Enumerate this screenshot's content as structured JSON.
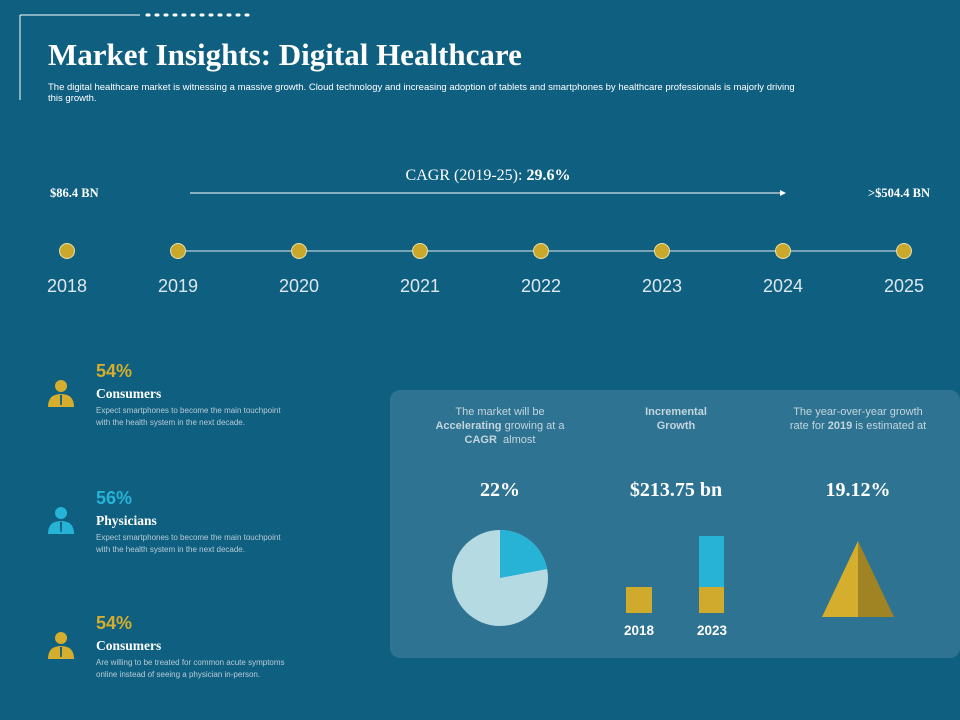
{
  "header": {
    "title": "Market Insights: Digital Healthcare",
    "subtitle": [
      "The digital healthcare market is witnessing a massive growth. Cloud technology and increasing adoption of tablets and smartphones by healthcare professionals is majorly driving",
      "this growth."
    ]
  },
  "timeline": {
    "cagr_label": "CAGR (2019-25):",
    "cagr_value": "29.6%",
    "start_value": "$86.4 BN",
    "end_value": ">$504.4 BN",
    "years": [
      "2018",
      "2019",
      "2020",
      "2021",
      "2022",
      "2023",
      "2024",
      "2025"
    ]
  },
  "segments": [
    {
      "percent": "54%",
      "title": "Consumers",
      "text": [
        "Expect smartphones to become the main touchpoint",
        "with the health system in the next decade."
      ]
    },
    {
      "percent": "56%",
      "title": "Physicians",
      "text": [
        "Expect smartphones to become the main touchpoint",
        "with the health system in the next decade."
      ]
    },
    {
      "percent": "54%",
      "title": "Consumers",
      "text": [
        "Are willing to be treated for common acute symptoms",
        "online instead of seeing a physician in-person."
      ]
    }
  ],
  "highlights": [
    {
      "caption": [
        [
          {
            "text": "The market will be"
          }
        ],
        [
          {
            "text": "Accelerating",
            "bold": true
          },
          {
            "text": " growing at a"
          }
        ],
        [
          {
            "text": "CAGR",
            "bold": true
          },
          {
            "text": "  almost"
          }
        ]
      ],
      "value": {
        "value": 22,
        "label": "22%"
      }
    },
    {
      "caption": [
        [
          {
            "text": "Incremental",
            "bold": true
          }
        ],
        [
          {
            "text": "Growth",
            "bold": true
          }
        ]
      ],
      "value": "$213.75 bn",
      "bar_labels": [
        "2018",
        "2023"
      ]
    },
    {
      "caption": [
        [
          {
            "text": "The year-over-year growth"
          }
        ],
        [
          {
            "text": "rate for "
          },
          {
            "text": "2019",
            "bold": true
          },
          {
            "text": " is estimated at"
          }
        ]
      ],
      "value": "19.12%"
    }
  ]
}
